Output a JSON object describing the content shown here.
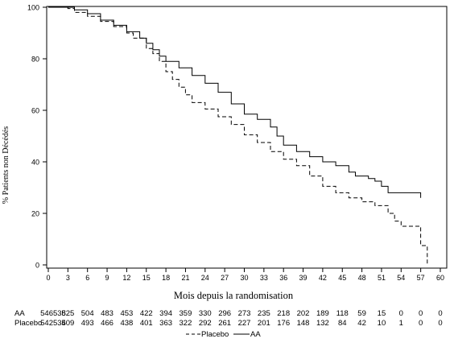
{
  "chart_data": {
    "type": "line",
    "chart_style": "step",
    "xlabel": "Mois depuis la randomisation",
    "ylabel": "% Patients non Décédés",
    "xlim": [
      0,
      60
    ],
    "ylim": [
      0,
      100
    ],
    "x_ticks": [
      0,
      3,
      6,
      9,
      12,
      15,
      18,
      21,
      24,
      27,
      30,
      33,
      36,
      39,
      42,
      45,
      48,
      51,
      54,
      57,
      60
    ],
    "y_ticks": [
      0,
      20,
      40,
      60,
      80,
      100
    ],
    "grid": false,
    "legend_position": "bottom-center",
    "series": [
      {
        "name": "Placebo",
        "line_style": "dashed",
        "color": "#000000",
        "x": [
          0,
          1,
          3,
          4,
          6,
          8,
          10,
          12,
          13,
          15,
          16,
          17,
          18,
          19,
          20,
          21,
          22,
          24,
          26,
          28,
          30,
          32,
          34,
          36,
          38,
          40,
          42,
          44,
          46,
          48,
          50,
          52,
          53,
          54,
          55,
          57,
          58
        ],
        "y": [
          100,
          100,
          99.5,
          98,
          96.5,
          94.5,
          92.5,
          90,
          88,
          84,
          82,
          79,
          75,
          72,
          69,
          66,
          63,
          60.5,
          57.5,
          54.5,
          50.5,
          47.5,
          44,
          41,
          38.5,
          34.5,
          30.5,
          28,
          26,
          24.5,
          23,
          20,
          17,
          15,
          15,
          7.5,
          0
        ]
      },
      {
        "name": "AA",
        "line_style": "solid",
        "color": "#000000",
        "x": [
          0,
          2,
          4,
          6,
          8,
          10,
          12,
          14,
          15,
          16,
          17,
          18,
          20,
          22,
          24,
          26,
          28,
          30,
          32,
          34,
          35,
          36,
          38,
          40,
          42,
          44,
          46,
          47,
          49,
          50,
          51,
          52,
          57
        ],
        "y": [
          100,
          100,
          99,
          97.5,
          95,
          93,
          90.5,
          88,
          86,
          83.5,
          81,
          79,
          76.5,
          73.5,
          70.5,
          67,
          62.5,
          58.5,
          56.5,
          53.5,
          50,
          46.5,
          44,
          42,
          40,
          38.5,
          36,
          34.5,
          33.5,
          32.5,
          30.5,
          28,
          26
        ]
      }
    ],
    "risk_table": {
      "x": [
        0,
        3,
        6,
        9,
        12,
        15,
        18,
        21,
        24,
        27,
        30,
        33,
        36,
        39,
        42,
        45,
        48,
        51,
        54,
        57,
        60
      ],
      "rows": [
        {
          "label": "AA",
          "values": [
            "546538",
            "525",
            "504",
            "483",
            "453",
            "422",
            "394",
            "359",
            "330",
            "296",
            "273",
            "235",
            "218",
            "202",
            "189",
            "118",
            "59",
            "15",
            "0",
            "0",
            "0"
          ]
        },
        {
          "label": "Placebo",
          "values": [
            "542534",
            "509",
            "493",
            "466",
            "438",
            "401",
            "363",
            "322",
            "292",
            "261",
            "227",
            "201",
            "176",
            "148",
            "132",
            "84",
            "42",
            "10",
            "1",
            "0",
            "0"
          ]
        }
      ]
    }
  }
}
